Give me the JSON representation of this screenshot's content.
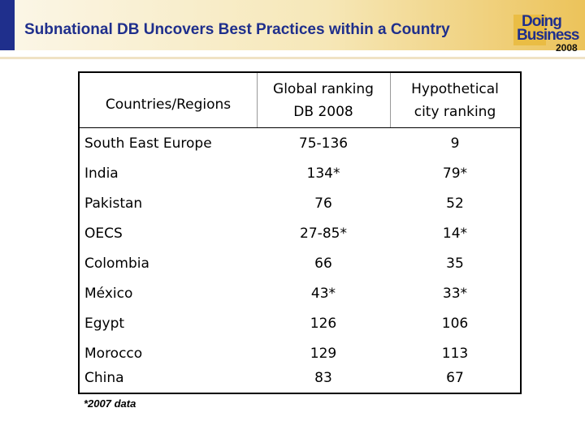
{
  "slide": {
    "title": "Subnational DB Uncovers Best Practices within a Country",
    "logo": {
      "line1": "Doing",
      "line2": "Business",
      "year": "2008"
    }
  },
  "table": {
    "headers": {
      "country": "Countries/Regions",
      "global_line1": "Global ranking",
      "global_line2": "DB 2008",
      "hypo_line1": "Hypothetical",
      "hypo_line2": "city ranking"
    },
    "rows": [
      {
        "country": "South East Europe",
        "global": "75-136",
        "city": "9"
      },
      {
        "country": "India",
        "global": "134*",
        "city": "79*"
      },
      {
        "country": "Pakistan",
        "global": "76",
        "city": "52"
      },
      {
        "country": "OECS",
        "global": "27-85*",
        "city": "14*"
      },
      {
        "country": "Colombia",
        "global": "66",
        "city": "35"
      },
      {
        "country": "México",
        "global": "43*",
        "city": "33*"
      },
      {
        "country": "Egypt",
        "global": "126",
        "city": "106"
      },
      {
        "country": "Morocco",
        "global": "129",
        "city": "113"
      },
      {
        "country": "China",
        "global": "83",
        "city": "67"
      }
    ],
    "footnote": "*2007 data"
  },
  "colors": {
    "title": "#1f2f8c",
    "accent_gold": "#ecc35a"
  }
}
